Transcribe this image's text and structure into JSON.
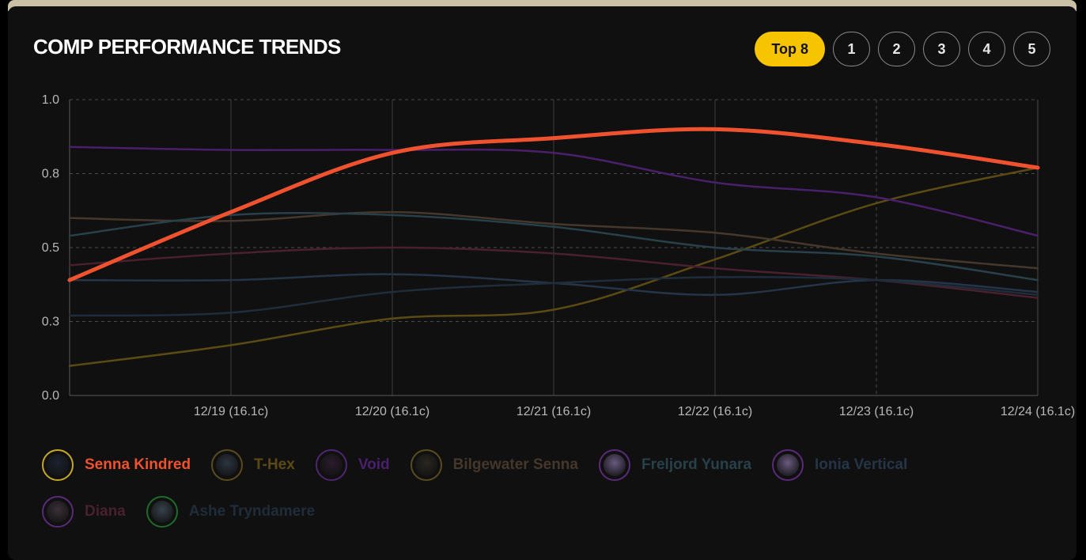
{
  "header": {
    "title": "COMP PERFORMANCE TRENDS",
    "filters": [
      "Top 8",
      "1",
      "2",
      "3",
      "4",
      "5"
    ],
    "active_filter": "Top 8"
  },
  "chart_data": {
    "type": "line",
    "title": "",
    "xlabel": "",
    "ylabel": "",
    "x_labels": [
      "",
      "12/19 (16.1c)",
      "12/20 (16.1c)",
      "12/21 (16.1c)",
      "12/22 (16.1c)",
      "12/23 (16.1c)",
      "12/24 (16.1c)"
    ],
    "y_ticks": [
      "1.0",
      "0.8",
      "0.5",
      "0.3",
      "0.0"
    ],
    "ylim": [
      0,
      1
    ],
    "grid": true,
    "legend_position": "bottom",
    "series": [
      {
        "name": "Senna Kindred",
        "color": "#f0522f",
        "highlight": true,
        "values": [
          0.39,
          0.62,
          0.82,
          0.87,
          0.9,
          0.85,
          0.77
        ]
      },
      {
        "name": "T-Hex",
        "color": "#5c4a14",
        "values": [
          0.1,
          0.17,
          0.26,
          0.29,
          0.46,
          0.65,
          0.77
        ]
      },
      {
        "name": "Void",
        "color": "#4a1f6b",
        "values": [
          0.84,
          0.83,
          0.83,
          0.82,
          0.72,
          0.67,
          0.54
        ]
      },
      {
        "name": "Bilgewater Senna",
        "color": "#45372c",
        "values": [
          0.6,
          0.59,
          0.62,
          0.58,
          0.55,
          0.48,
          0.43
        ]
      },
      {
        "name": "Freljord Yunara",
        "color": "#27404a",
        "values": [
          0.54,
          0.61,
          0.61,
          0.57,
          0.5,
          0.47,
          0.39
        ]
      },
      {
        "name": "Ionia Vertical",
        "color": "#253447",
        "values": [
          0.39,
          0.39,
          0.41,
          0.38,
          0.34,
          0.39,
          0.35
        ]
      },
      {
        "name": "Diana",
        "color": "#4a1f2e",
        "values": [
          0.44,
          0.48,
          0.5,
          0.48,
          0.43,
          0.39,
          0.33
        ]
      },
      {
        "name": "Ashe Tryndamere",
        "color": "#1f2c3a",
        "values": [
          0.27,
          0.28,
          0.35,
          0.38,
          0.4,
          0.39,
          0.34
        ]
      }
    ]
  },
  "legend_icons": [
    {
      "ring": "#c5a82a",
      "fill": "#1a2230",
      "icon": "senna-kindred-portrait-icon"
    },
    {
      "ring": "#5a4b1f",
      "fill": "#2c3540",
      "icon": "t-hex-portrait-icon"
    },
    {
      "ring": "#4e2570",
      "fill": "#2a1c2c",
      "icon": "void-portrait-icon"
    },
    {
      "ring": "#5a4b1f",
      "fill": "#2a2620",
      "icon": "bilgewater-senna-portrait-icon"
    },
    {
      "ring": "#5a2a7a",
      "fill": "#6a5a80",
      "icon": "freljord-yunara-portrait-icon"
    },
    {
      "ring": "#5a2a7a",
      "fill": "#6a5a80",
      "icon": "ionia-vertical-portrait-icon"
    },
    {
      "ring": "#5a2a7a",
      "fill": "#3a3038",
      "icon": "diana-portrait-icon"
    },
    {
      "ring": "#1f6b2a",
      "fill": "#36424a",
      "icon": "ashe-tryndamere-portrait-icon"
    }
  ]
}
